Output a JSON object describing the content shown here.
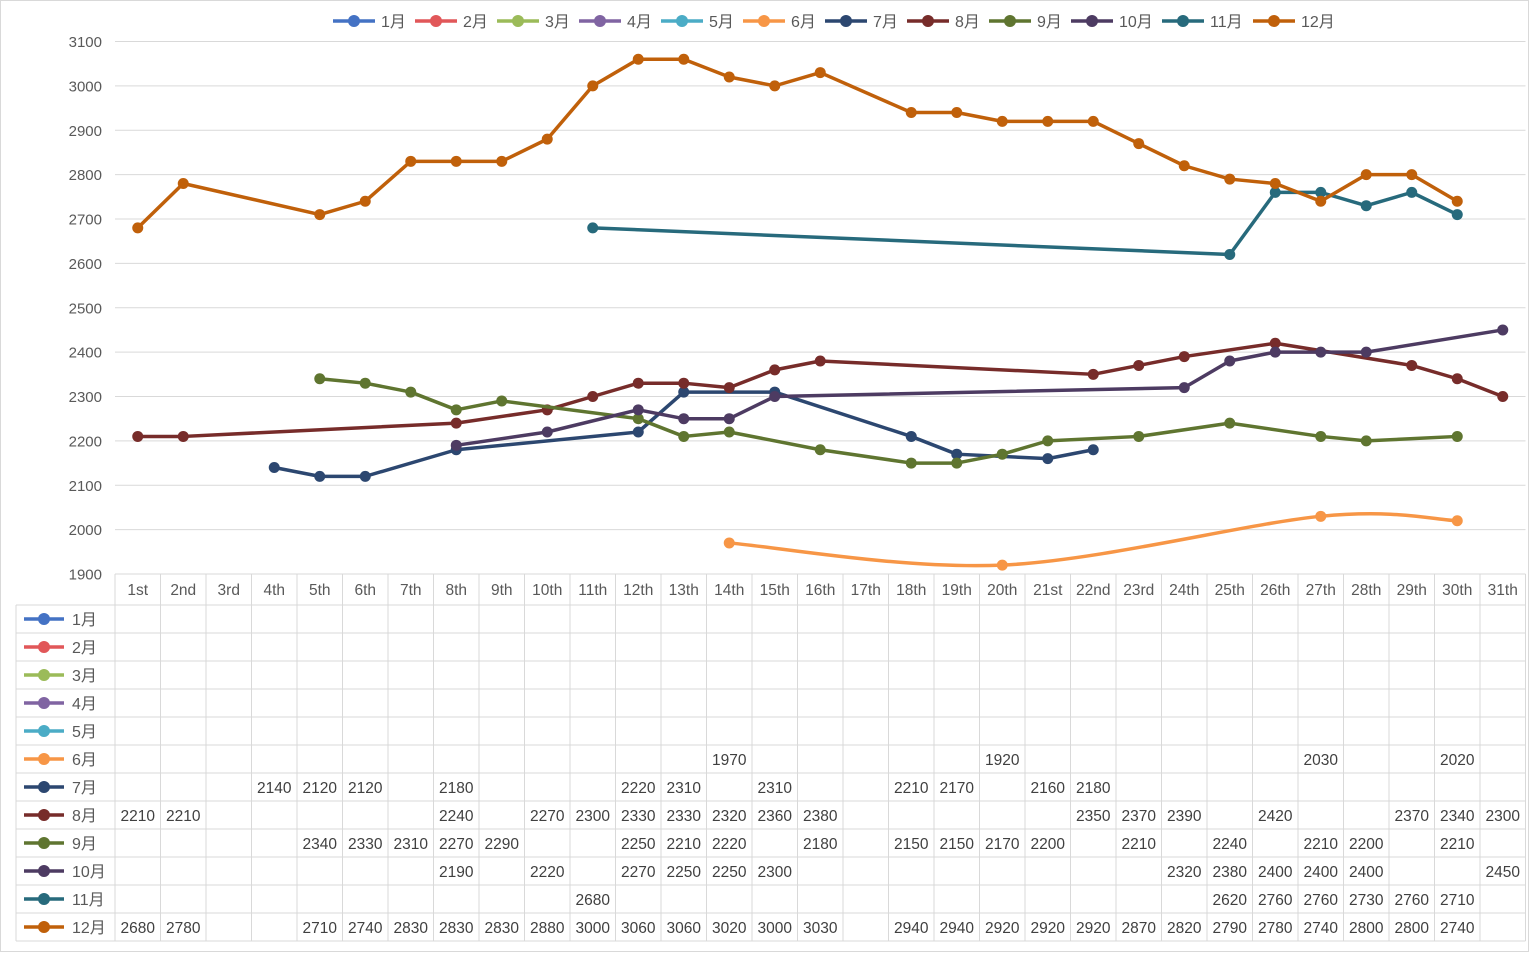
{
  "chart_data": {
    "type": "line",
    "title": "",
    "xlabel": "",
    "ylabel": "",
    "ylim": [
      1900,
      3100
    ],
    "yticks": [
      1900,
      2000,
      2100,
      2200,
      2300,
      2400,
      2500,
      2600,
      2700,
      2800,
      2900,
      3000,
      3100
    ],
    "grid": true,
    "legend_position": "top",
    "has_data_table": true,
    "categories": [
      "1st",
      "2nd",
      "3rd",
      "4th",
      "5th",
      "6th",
      "7th",
      "8th",
      "9th",
      "10th",
      "11th",
      "12th",
      "13th",
      "14th",
      "15th",
      "16th",
      "17th",
      "18th",
      "19th",
      "20th",
      "21st",
      "22nd",
      "23rd",
      "24th",
      "25th",
      "26th",
      "27th",
      "28th",
      "29th",
      "30th",
      "31th"
    ],
    "series": [
      {
        "name": "1月",
        "color": "#4472C4",
        "smooth": false,
        "values": [
          null,
          null,
          null,
          null,
          null,
          null,
          null,
          null,
          null,
          null,
          null,
          null,
          null,
          null,
          null,
          null,
          null,
          null,
          null,
          null,
          null,
          null,
          null,
          null,
          null,
          null,
          null,
          null,
          null,
          null,
          null
        ]
      },
      {
        "name": "2月",
        "color": "#E15759",
        "smooth": false,
        "values": [
          null,
          null,
          null,
          null,
          null,
          null,
          null,
          null,
          null,
          null,
          null,
          null,
          null,
          null,
          null,
          null,
          null,
          null,
          null,
          null,
          null,
          null,
          null,
          null,
          null,
          null,
          null,
          null,
          null,
          null,
          null
        ]
      },
      {
        "name": "3月",
        "color": "#9BBB59",
        "smooth": false,
        "values": [
          null,
          null,
          null,
          null,
          null,
          null,
          null,
          null,
          null,
          null,
          null,
          null,
          null,
          null,
          null,
          null,
          null,
          null,
          null,
          null,
          null,
          null,
          null,
          null,
          null,
          null,
          null,
          null,
          null,
          null,
          null
        ]
      },
      {
        "name": "4月",
        "color": "#8064A2",
        "smooth": false,
        "values": [
          null,
          null,
          null,
          null,
          null,
          null,
          null,
          null,
          null,
          null,
          null,
          null,
          null,
          null,
          null,
          null,
          null,
          null,
          null,
          null,
          null,
          null,
          null,
          null,
          null,
          null,
          null,
          null,
          null,
          null,
          null
        ]
      },
      {
        "name": "5月",
        "color": "#4BACC6",
        "smooth": false,
        "values": [
          null,
          null,
          null,
          null,
          null,
          null,
          null,
          null,
          null,
          null,
          null,
          null,
          null,
          null,
          null,
          null,
          null,
          null,
          null,
          null,
          null,
          null,
          null,
          null,
          null,
          null,
          null,
          null,
          null,
          null,
          null
        ]
      },
      {
        "name": "6月",
        "color": "#F79646",
        "smooth": true,
        "values": [
          null,
          null,
          null,
          null,
          null,
          null,
          null,
          null,
          null,
          null,
          null,
          null,
          null,
          1970,
          null,
          null,
          null,
          null,
          null,
          1920,
          null,
          null,
          null,
          null,
          null,
          null,
          2030,
          null,
          null,
          2020,
          null
        ]
      },
      {
        "name": "7月",
        "color": "#2C4770",
        "smooth": false,
        "values": [
          null,
          null,
          null,
          2140,
          2120,
          2120,
          null,
          2180,
          null,
          null,
          null,
          2220,
          2310,
          null,
          2310,
          null,
          null,
          2210,
          2170,
          null,
          2160,
          2180,
          null,
          null,
          null,
          null,
          null,
          null,
          null,
          null,
          null
        ]
      },
      {
        "name": "8月",
        "color": "#772C2A",
        "smooth": false,
        "values": [
          2210,
          2210,
          null,
          null,
          null,
          null,
          null,
          2240,
          null,
          2270,
          2300,
          2330,
          2330,
          2320,
          2360,
          2380,
          null,
          null,
          null,
          null,
          null,
          2350,
          2370,
          2390,
          null,
          2420,
          null,
          null,
          2370,
          2340,
          2300
        ]
      },
      {
        "name": "9月",
        "color": "#5F7530",
        "smooth": false,
        "values": [
          null,
          null,
          null,
          null,
          2340,
          2330,
          2310,
          2270,
          2290,
          null,
          null,
          2250,
          2210,
          2220,
          null,
          2180,
          null,
          2150,
          2150,
          2170,
          2200,
          null,
          2210,
          null,
          2240,
          null,
          2210,
          2200,
          null,
          2210,
          null
        ]
      },
      {
        "name": "10月",
        "color": "#4D3B62",
        "smooth": false,
        "values": [
          null,
          null,
          null,
          null,
          null,
          null,
          null,
          2190,
          null,
          2220,
          null,
          2270,
          2250,
          2250,
          2300,
          null,
          null,
          null,
          null,
          null,
          null,
          null,
          null,
          2320,
          2380,
          2400,
          2400,
          2400,
          null,
          null,
          2450
        ]
      },
      {
        "name": "11月",
        "color": "#276A7C",
        "smooth": false,
        "values": [
          null,
          null,
          null,
          null,
          null,
          null,
          null,
          null,
          null,
          null,
          2680,
          null,
          null,
          null,
          null,
          null,
          null,
          null,
          null,
          null,
          null,
          null,
          null,
          null,
          2620,
          2760,
          2760,
          2730,
          2760,
          2710,
          null
        ]
      },
      {
        "name": "12月",
        "color": "#C0600A",
        "smooth": false,
        "values": [
          2680,
          2780,
          null,
          null,
          2710,
          2740,
          2830,
          2830,
          2830,
          2880,
          3000,
          3060,
          3060,
          3020,
          3000,
          3030,
          null,
          2940,
          2940,
          2920,
          2920,
          2920,
          2870,
          2820,
          2790,
          2780,
          2740,
          2800,
          2800,
          2740,
          null
        ]
      }
    ]
  }
}
